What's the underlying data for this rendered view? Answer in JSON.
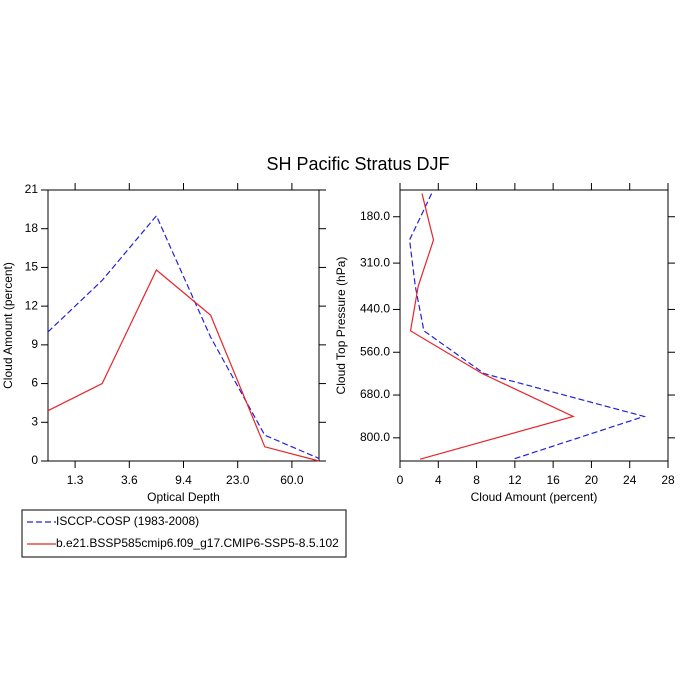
{
  "title": "SH Pacific Stratus DJF",
  "chart_data": [
    {
      "type": "line",
      "xlabel": "Optical Depth",
      "ylabel": "Cloud Amount (percent)",
      "x": [
        0,
        1,
        2,
        3,
        4,
        5
      ],
      "xlim": [
        0,
        5
      ],
      "xticks": [
        {
          "value": 0.5,
          "label": "1.3"
        },
        {
          "value": 1.5,
          "label": "3.6"
        },
        {
          "value": 2.5,
          "label": "9.4"
        },
        {
          "value": 3.5,
          "label": "23.0"
        },
        {
          "value": 4.5,
          "label": "60.0"
        }
      ],
      "ylim": [
        0,
        21
      ],
      "yticks": [
        0,
        3,
        6,
        9,
        12,
        15,
        18,
        21
      ],
      "series": [
        {
          "name": "ISCCP-COSP (1983-2008)",
          "color": "#2222dd",
          "dash": true,
          "values": [
            10,
            14,
            19,
            9.6,
            2,
            0.2
          ]
        },
        {
          "name": "b.e21.BSSP585cmip6.f09_g17.CMIP6-SSP5-8.5.102",
          "color": "#e8242a",
          "dash": false,
          "values": [
            3.9,
            6,
            14.8,
            11.3,
            1.1,
            0
          ]
        }
      ]
    },
    {
      "type": "profile",
      "xlabel": "Cloud Amount (percent)",
      "ylabel": "Cloud Top Pressure (hPa)",
      "y": [
        115,
        245,
        375,
        500,
        620,
        740,
        860
      ],
      "ylim": [
        105,
        865
      ],
      "y_reversed": true,
      "yticks": [
        {
          "value": 180,
          "label": "180.0"
        },
        {
          "value": 310,
          "label": "310.0"
        },
        {
          "value": 440,
          "label": "440.0"
        },
        {
          "value": 560,
          "label": "560.0"
        },
        {
          "value": 680,
          "label": "680.0"
        },
        {
          "value": 800,
          "label": "800.0"
        }
      ],
      "xlim": [
        0,
        28
      ],
      "xticks": [
        0,
        4,
        8,
        12,
        16,
        20,
        24,
        28
      ],
      "series": [
        {
          "color": "#2222dd",
          "dash": true,
          "values": [
            3.3,
            1.0,
            1.6,
            2.5,
            8.8,
            25.5,
            11.8
          ]
        },
        {
          "color": "#e8242a",
          "dash": false,
          "values": [
            2.3,
            3.5,
            1.9,
            1.1,
            8.6,
            18.1,
            2.1
          ]
        }
      ]
    }
  ]
}
